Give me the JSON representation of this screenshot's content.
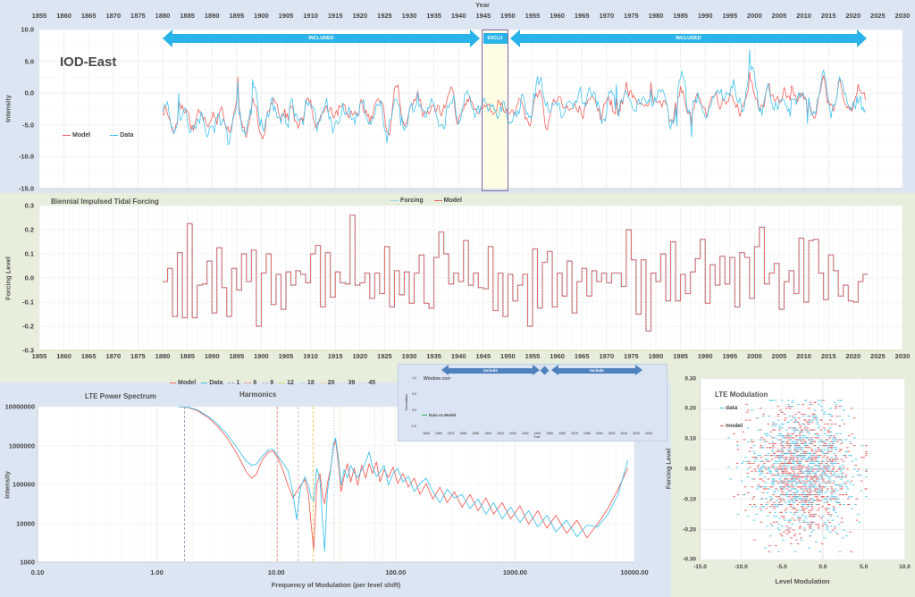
{
  "colors": {
    "page_bg": "#dce6f2",
    "panel_green": "#e7efdc",
    "inset_bg": "#dbe4f3",
    "inset_border": "#c0cee3",
    "arrow_blue": "#2ab3e8",
    "steel_blue": "#4f81bd",
    "excluded_fill": "#fffce6",
    "excluded_border": "#8064a2",
    "model_red": "#f2605a",
    "data_cyan": "#41c3ef",
    "forcing_cyan": "#56c6e9",
    "corr_green": "#34a853",
    "scatter_red": "#e05252",
    "text_dark": "#454545",
    "grid": "#e6e6e6",
    "grid_faint": "#f3f3f3"
  },
  "panels": {
    "iod": {
      "title": "IOD-East",
      "axis": {
        "x_title": "Year",
        "y_title": "Intensity"
      },
      "x_ticks": [
        "1855",
        "1860",
        "1865",
        "1870",
        "1875",
        "1880",
        "1885",
        "1890",
        "1895",
        "1900",
        "1905",
        "1910",
        "1915",
        "1920",
        "1925",
        "1930",
        "1935",
        "1940",
        "1945",
        "1950",
        "1955",
        "1960",
        "1965",
        "1970",
        "1975",
        "1980",
        "1985",
        "1990",
        "1995",
        "2000",
        "2005",
        "2010",
        "2015",
        "2020",
        "2025",
        "2030"
      ],
      "y_ticks": [
        "10.0",
        "5.0",
        "0.0",
        "-5.0",
        "-10.0",
        "-15.0"
      ],
      "legend": [
        {
          "label": "Model",
          "color": "#f2605a"
        },
        {
          "label": "Data",
          "color": "#41c3ef"
        }
      ],
      "annotations": [
        {
          "label": "INCLUDED",
          "type": "span-arrow",
          "from": 1881,
          "to": 1944.5
        },
        {
          "label": "EXCLU",
          "type": "excluded-region",
          "from": 1945,
          "to": 1950
        },
        {
          "label": "INCLUDED",
          "type": "span-arrow",
          "from": 1951.5,
          "to": 2022.5
        }
      ]
    },
    "forcing": {
      "title": "Biennial Impulsed Tidal Forcing",
      "axis": {
        "x_title": "Year",
        "y_title": "Forcing Level"
      },
      "x_ticks": [
        "1855",
        "1860",
        "1865",
        "1870",
        "1875",
        "1880",
        "1885",
        "1890",
        "1895",
        "1900",
        "1905",
        "1910",
        "1915",
        "1920",
        "1925",
        "1930",
        "1935",
        "1940",
        "1945",
        "1950",
        "1955",
        "1960",
        "1965",
        "1970",
        "1975",
        "1980",
        "1985",
        "1990",
        "1995",
        "2000",
        "2005",
        "2010",
        "2015",
        "2020",
        "2025",
        "2030"
      ],
      "y_ticks": [
        "0.3",
        "0.2",
        "0.1",
        "0.0",
        "-0.1",
        "-0.2",
        "-0.3"
      ],
      "legend": [
        {
          "label": "Forcing",
          "color": "#56c6e9",
          "style": "dotted"
        },
        {
          "label": "Model",
          "color": "#f2605a",
          "style": "solid"
        }
      ]
    },
    "spectrum": {
      "title": "LTE Power Spectrum",
      "legend_title": "Harmonics",
      "axis": {
        "x_title": "Frequency of Modulation (per level shift)",
        "y_title": "Intensity"
      },
      "x_ticks": [
        "0.10",
        "1.00",
        "10.00",
        "100.00",
        "1000.00",
        "10000.00"
      ],
      "y_ticks": [
        "10000000",
        "1000000",
        "100000",
        "10000",
        "1000"
      ],
      "legend": [
        {
          "label": "Model",
          "color": "#f2605a",
          "style": "solid"
        },
        {
          "label": "Data",
          "color": "#41c3ef",
          "style": "solid"
        },
        {
          "label": "1",
          "color": "#8496b0",
          "style": "dashed"
        },
        {
          "label": "6",
          "color": "#f28a7e",
          "style": "dashed"
        },
        {
          "label": "9",
          "color": "#b5b5b5",
          "style": "dashed"
        },
        {
          "label": "12",
          "color": "#e3c433",
          "style": "dashed"
        },
        {
          "label": "18",
          "color": "#8fc3e8",
          "style": "dotted"
        },
        {
          "label": "20",
          "color": "#f3b07c",
          "style": "dotted"
        },
        {
          "label": "39",
          "color": "#c9c9c9",
          "style": "dotted"
        },
        {
          "label": "45",
          "color": "#d5d5d5",
          "style": "dotted"
        }
      ]
    },
    "window_corr": {
      "title": "Window corr",
      "axis": {
        "x_title": "Year",
        "y_title": "Correlation"
      },
      "x_ticks": [
        "1850",
        "1860",
        "1870",
        "1880",
        "1890",
        "1900",
        "1910",
        "1920",
        "1930",
        "1940",
        "1950",
        "1960",
        "1970",
        "1980",
        "1990",
        "2000",
        "2010",
        "2020",
        "2030"
      ],
      "y_ticks": [
        "1.0",
        "0.5",
        "0.0",
        "-0.5"
      ],
      "legend": [
        {
          "label": "Data vs Model",
          "color": "#34a853"
        }
      ],
      "annotations": [
        {
          "label": "Include"
        },
        {
          "label": "Include"
        }
      ]
    },
    "modulation": {
      "title": "LTE Modulation",
      "axis": {
        "x_title": "Level Modulation",
        "y_title": "Forcing Level"
      },
      "x_ticks": [
        "-15.0",
        "-10.0",
        "-5.0",
        "0.0",
        "5.0",
        "10.0"
      ],
      "y_ticks": [
        "0.30",
        "0.20",
        "0.10",
        "0.00",
        "-0.10",
        "-0.20",
        "-0.30"
      ],
      "legend": [
        {
          "label": "data",
          "color": "#41c3ef"
        },
        {
          "label": "model",
          "color": "#e05252"
        }
      ]
    }
  },
  "chart_data": [
    {
      "id": "iod",
      "type": "line",
      "title": "IOD-East",
      "xlabel": "Year",
      "ylabel": "Intensity",
      "xlim": [
        1855,
        2030
      ],
      "ylim": [
        -15,
        10
      ],
      "grid": true,
      "legend_position": "inside-left",
      "series": [
        {
          "name": "Model",
          "color": "#f2605a"
        },
        {
          "name": "Data",
          "color": "#41c3ef"
        }
      ],
      "data_span_years": [
        1880,
        2022.5
      ],
      "included_spans": [
        [
          1881,
          1944.5
        ],
        [
          1951.5,
          2022.5
        ]
      ],
      "excluded_span": [
        1945,
        1950
      ],
      "synthesis": {
        "seed": 11,
        "dt_years": 0.25,
        "baseline_start": -3.9,
        "baseline_end": -0.6,
        "osc_period_yr": 3.6,
        "amp_mod_periods": [
          14.7,
          31
        ],
        "noise_amp": 0.78,
        "spike_down_prob": 0.013,
        "spike_up_prob": 0.01,
        "value_range": [
          -11.8,
          6.8
        ]
      }
    },
    {
      "id": "forcing",
      "type": "step",
      "title": "Biennial Impulsed Tidal Forcing",
      "xlabel": "Year",
      "ylabel": "Forcing Level",
      "xlim": [
        1855,
        2030
      ],
      "ylim": [
        -0.3,
        0.3
      ],
      "series": [
        {
          "name": "Forcing",
          "color": "#56c6e9",
          "line": "dotted"
        },
        {
          "name": "Model",
          "color": "#f2605a",
          "line": "solid"
        }
      ],
      "data_span_years": [
        1880,
        2022
      ],
      "synthesis": {
        "seed": 23,
        "step_years": 1,
        "alternate_prob": 0.78,
        "mag_min": 0.015,
        "mag_span": 0.155,
        "extreme_prob": 0.075,
        "extreme_min": 0.18,
        "extreme_span": 0.095,
        "quantum": 0.005
      }
    },
    {
      "id": "spectrum",
      "type": "line",
      "xscale": "log",
      "yscale": "log",
      "title": "LTE Power Spectrum",
      "xlabel": "Frequency of Modulation (per level shift)",
      "ylabel": "Intensity",
      "xlim": [
        0.1,
        10000
      ],
      "ylim": [
        1000,
        10000000
      ],
      "harmonics": {
        "fundamental_freq": 1.7,
        "numbers": [
          1,
          6,
          9,
          12,
          18,
          20,
          39,
          45
        ],
        "colors": [
          "#8496b0",
          "#f28a7e",
          "#b5b5b5",
          "#e3c433",
          "#8fc3e8",
          "#f3b07c",
          "#c9c9c9",
          "#d5d5d5"
        ]
      },
      "series": [
        {
          "name": "Model",
          "color": "#f2605a"
        },
        {
          "name": "Data",
          "color": "#41c3ef"
        }
      ],
      "points_freq_model_data": [
        [
          1.5,
          10000000.0,
          10000000.0
        ],
        [
          1.8,
          9600000.0,
          9800000.0
        ],
        [
          2.2,
          7800000.0,
          8200000.0
        ],
        [
          2.7,
          5200000.0,
          5600000.0
        ],
        [
          3.2,
          3200000.0,
          3600000.0
        ],
        [
          3.8,
          1700000.0,
          2100000.0
        ],
        [
          4.4,
          850000.0,
          1150000.0
        ],
        [
          5,
          420000.0,
          650000.0
        ],
        [
          5.6,
          210000.0,
          400000.0
        ],
        [
          6.2,
          145000.0,
          310000.0
        ],
        [
          6.8,
          180000.0,
          330000.0
        ],
        [
          7.6,
          420000.0,
          520000.0
        ],
        [
          8.6,
          680000.0,
          780000.0
        ],
        [
          9.4,
          720000.0,
          800000.0
        ],
        [
          10.4,
          460000.0,
          520000.0
        ],
        [
          11.5,
          210000.0,
          340000.0
        ],
        [
          12.6,
          90000.0,
          220000.0
        ],
        [
          13.8,
          45000.0,
          60000.0
        ],
        [
          14.8,
          65000.0,
          12500.0
        ],
        [
          16,
          95000.0,
          85000.0
        ],
        [
          17.4,
          135000.0,
          160000.0
        ],
        [
          18.6,
          55000.0,
          90000.0
        ],
        [
          19.6,
          9000.0,
          45000.0
        ],
        [
          20.6,
          2100.0,
          38000.0
        ],
        [
          21.8,
          95000.0,
          260000.0
        ],
        [
          23.2,
          190000.0,
          135000.0
        ],
        [
          24.6,
          45000.0,
          8000.0
        ],
        [
          25.4,
          32000.0,
          1900.0
        ],
        [
          26.8,
          105000.0,
          65000.0
        ],
        [
          28.4,
          240000.0,
          210000.0
        ],
        [
          30.2,
          950000.0,
          1150000.0
        ],
        [
          31.4,
          1350000.0,
          1550000.0
        ],
        [
          33,
          380000.0,
          520000.0
        ],
        [
          35,
          65000.0,
          95000.0
        ],
        [
          37,
          160000.0,
          240000.0
        ],
        [
          39.4,
          340000.0,
          145000.0
        ],
        [
          42,
          115000.0,
          310000.0
        ],
        [
          45,
          260000.0,
          200000.0
        ],
        [
          48,
          95000.0,
          150000.0
        ],
        [
          52,
          310000.0,
          240000.0
        ],
        [
          56,
          145000.0,
          380000.0
        ],
        [
          60,
          340000.0,
          680000.0
        ],
        [
          64,
          190000.0,
          280000.0
        ],
        [
          69,
          380000.0,
          160000.0
        ],
        [
          74,
          115000.0,
          210000.0
        ],
        [
          80,
          240000.0,
          310000.0
        ],
        [
          87,
          150000.0,
          95000.0
        ],
        [
          95,
          280000.0,
          190000.0
        ],
        [
          104,
          105000.0,
          260000.0
        ],
        [
          115,
          190000.0,
          115000.0
        ],
        [
          128,
          85000.0,
          160000.0
        ],
        [
          143,
          145000.0,
          65000.0
        ],
        [
          160,
          55000.0,
          105000.0
        ],
        [
          180,
          105000.0,
          145000.0
        ],
        [
          205,
          42000.0,
          65000.0
        ],
        [
          235,
          85000.0,
          34000.0
        ],
        [
          270,
          34000.0,
          75000.0
        ],
        [
          310,
          65000.0,
          45000.0
        ],
        [
          360,
          26000.0,
          55000.0
        ],
        [
          420,
          55000.0,
          24000.0
        ],
        [
          490,
          21000.0,
          42000.0
        ],
        [
          570,
          45000.0,
          17000.0
        ],
        [
          660,
          17000.0,
          34000.0
        ],
        [
          780,
          34000.0,
          13000.0
        ],
        [
          920,
          13000.0,
          26000.0
        ],
        [
          1100,
          28000.0,
          10500.0
        ],
        [
          1300,
          9500.0,
          21000.0
        ],
        [
          1550,
          21000.0,
          8000.0
        ],
        [
          1850,
          7500.0,
          16000.0
        ],
        [
          2200,
          16000.0,
          6000.0
        ],
        [
          2700,
          5500.0,
          12000.0
        ],
        [
          3300,
          12000.0,
          4500.0
        ],
        [
          4000,
          4200.0,
          9000.0
        ],
        [
          4900,
          9500.0,
          8000.0
        ],
        [
          6000,
          24000.0,
          17000.0
        ],
        [
          7300,
          75000.0,
          55000.0
        ],
        [
          8800,
          260000.0,
          420000.0
        ]
      ]
    },
    {
      "id": "window_corr",
      "type": "line",
      "title": "Window corr",
      "xlabel": "Year",
      "ylabel": "Correlation",
      "xlim": [
        1850,
        2030
      ],
      "ylim": [
        -0.5,
        1.0
      ],
      "series": [
        {
          "name": "Data vs Model",
          "color": "#34a853"
        }
      ],
      "data_span_years": [
        1881,
        2022
      ],
      "include_spans": [
        [
          1881,
          1944
        ],
        [
          1951,
          2022
        ]
      ],
      "synthesis": {
        "seed": 5,
        "dt_years": 0.35,
        "mean": 0.42,
        "osc_amp": 0.2,
        "osc_period_yr": 6.8,
        "osc2_amp": 0.1,
        "osc2_period_yr": 23,
        "noise_amp": 0.085,
        "dip_prob": 0.012,
        "value_range": [
          -0.36,
          0.8
        ]
      }
    },
    {
      "id": "modulation",
      "type": "scatter",
      "title": "LTE Modulation",
      "xlabel": "Level Modulation",
      "ylabel": "Forcing Level",
      "xlim": [
        -15,
        10
      ],
      "ylim": [
        -0.3,
        0.3
      ],
      "series": [
        {
          "name": "data",
          "color": "#41c3ef"
        },
        {
          "name": "model",
          "color": "#e05252"
        }
      ],
      "synthesis": {
        "seed": 41,
        "n_points": 1700,
        "x_mean": -2.3,
        "x_sd": 3.1,
        "x_range": [
          -11.5,
          5.3
        ],
        "y_sd": 0.105,
        "y_quantum": 0.0065,
        "y_range": [
          -0.275,
          0.225
        ]
      }
    }
  ]
}
